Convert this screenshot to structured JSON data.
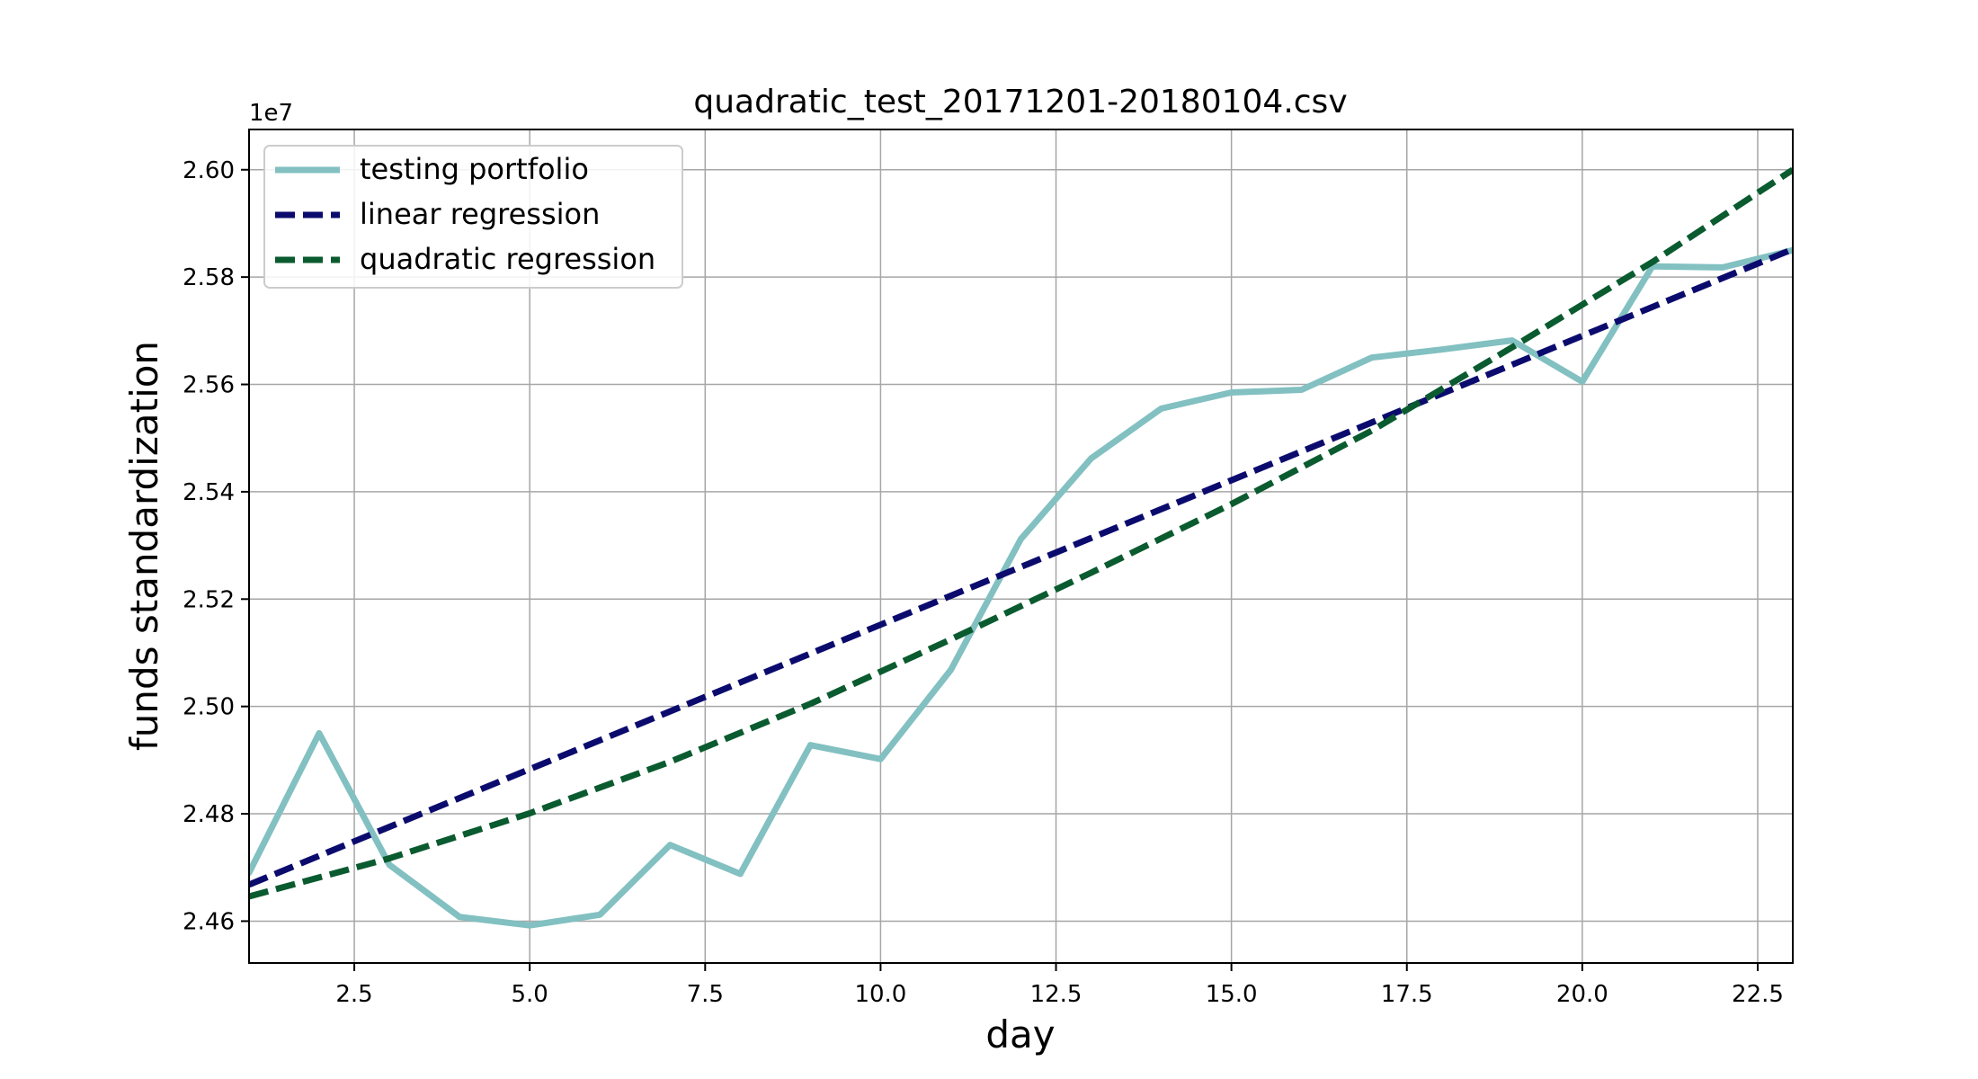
{
  "chart_data": {
    "type": "line",
    "title": "quadratic_test_20171201-20180104.csv",
    "xlabel": "day",
    "ylabel": "funds standardization",
    "y_offset_label": "1e7",
    "xlim": [
      1,
      23
    ],
    "ylim": [
      2.4522,
      2.6075
    ],
    "x_ticks": [
      2.5,
      5.0,
      7.5,
      10.0,
      12.5,
      15.0,
      17.5,
      20.0,
      22.5
    ],
    "x_tick_labels": [
      "2.5",
      "5.0",
      "7.5",
      "10.0",
      "12.5",
      "15.0",
      "17.5",
      "20.0",
      "22.5"
    ],
    "y_ticks": [
      2.46,
      2.48,
      2.5,
      2.52,
      2.54,
      2.56,
      2.58,
      2.6
    ],
    "y_tick_labels": [
      "2.46",
      "2.48",
      "2.50",
      "2.52",
      "2.54",
      "2.56",
      "2.58",
      "2.60"
    ],
    "grid": true,
    "legend_position": "top-left",
    "series": [
      {
        "name": "testing portfolio",
        "color": "#82c0c1",
        "style": "solid",
        "x": [
          1,
          2,
          3,
          4,
          5,
          6,
          7,
          8,
          9,
          10,
          11,
          12,
          13,
          14,
          15,
          16,
          17,
          18,
          19,
          20,
          21,
          22,
          23
        ],
        "y": [
          2.469,
          2.495,
          2.4705,
          2.4608,
          2.4592,
          2.4612,
          2.4742,
          2.4688,
          2.4928,
          2.4902,
          2.5068,
          2.5312,
          2.5462,
          2.5555,
          2.5585,
          2.559,
          2.565,
          2.5665,
          2.5682,
          2.5605,
          2.582,
          2.5818,
          2.585
        ]
      },
      {
        "name": "linear regression",
        "color": "#0b0b6e",
        "style": "dashed",
        "x": [
          1,
          23
        ],
        "y": [
          2.4668,
          2.5852
        ]
      },
      {
        "name": "quadratic regression",
        "color": "#0a5b2f",
        "style": "dashed",
        "x": [
          1,
          3,
          5,
          7,
          9,
          11,
          13,
          15,
          17,
          19,
          21,
          23
        ],
        "y": [
          2.4646,
          2.4717,
          2.4801,
          2.4897,
          2.5005,
          2.5125,
          2.5249,
          2.5377,
          2.5514,
          2.5669,
          2.5828,
          2.6
        ]
      }
    ]
  }
}
